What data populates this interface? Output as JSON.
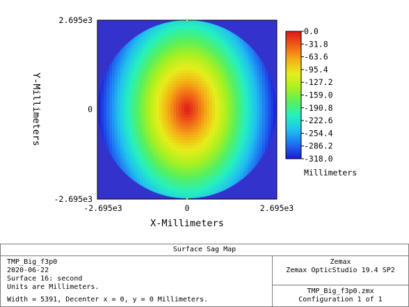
{
  "colors": {
    "outside": "#3333cc",
    "colormap": [
      "#1c1cd6",
      "#1f6ff2",
      "#20c0f0",
      "#25f0c0",
      "#55f060",
      "#a8f020",
      "#e6ee1a",
      "#f5b016",
      "#f06018",
      "#e01818"
    ]
  },
  "chart_data": {
    "type": "heatmap",
    "title": "Surface Sag Map",
    "xlabel": "X-Millimeters",
    "ylabel": "Y-Millimeters",
    "x_ticks": [
      "-2.695e3",
      "0",
      "2.695e3"
    ],
    "y_ticks": [
      "2.695e3",
      "0",
      "-2.695e3"
    ],
    "xlim": [
      -2695,
      2695
    ],
    "ylim": [
      -2695,
      2695
    ],
    "aperture": "circular, radius 2695 mm",
    "sag_model": "sag(x,y) = 318 * sqrt((x/2695)^2 + ((y/2695)/1.4)^2), capped at 318",
    "pattern": "elliptical contours centered at origin, elongated vertically; maximum 0.0 at center, decreasing toward edge",
    "colorbar": {
      "min": -318.0,
      "max": 0.0,
      "tick_labels": [
        "0.0",
        "-31.8",
        "-63.6",
        "-95.4",
        "-127.2",
        "-159.0",
        "-190.8",
        "-222.6",
        "-254.4",
        "-286.2",
        "-318.0"
      ],
      "unit_label": "Millimeters"
    }
  },
  "info": {
    "title": "Surface Sag Map",
    "left_lines": [
      "TMP_Big_f3p0",
      "2020-06-22",
      "Surface 16: second",
      "Units are Millimeters."
    ],
    "width_line": "Width = 5391, Decenter x = 0, y = 0 Millimeters.",
    "right_top": [
      "Zemax",
      "Zemax OpticStudio 19.4 SP2"
    ],
    "right_bottom": [
      "TMP_Big_f3p0.zmx",
      "Configuration 1 of 1"
    ]
  }
}
